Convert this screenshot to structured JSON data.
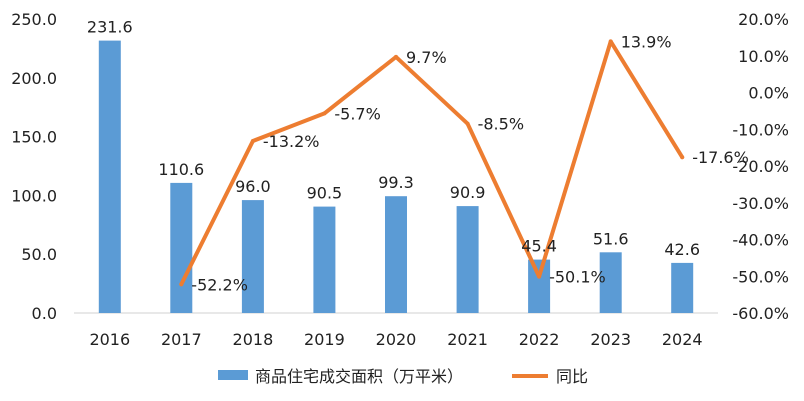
{
  "chart_data": {
    "type": "bar",
    "categories": [
      "2016",
      "2017",
      "2018",
      "2019",
      "2020",
      "2021",
      "2022",
      "2023",
      "2024"
    ],
    "series": [
      {
        "name": "商品住宅成交面积（万平米）",
        "type": "bar",
        "axis": "left",
        "color": "#5B9BD5",
        "values": [
          231.6,
          110.6,
          96.0,
          90.5,
          99.3,
          90.9,
          45.4,
          51.6,
          42.6
        ],
        "labels": [
          "231.6",
          "110.6",
          "96.0",
          "90.5",
          "99.3",
          "90.9",
          "45.4",
          "51.6",
          "42.6"
        ]
      },
      {
        "name": "同比",
        "type": "line",
        "axis": "right",
        "color": "#ED7D31",
        "values": [
          null,
          -52.2,
          -13.2,
          -5.7,
          9.7,
          -8.5,
          -50.1,
          13.9,
          -17.6
        ],
        "labels": [
          "",
          "-52.2%",
          "-13.2%",
          "-5.7%",
          "9.7%",
          "-8.5%",
          "-50.1%",
          "13.9%",
          "-17.6%"
        ]
      }
    ],
    "y_left": {
      "ylim": [
        0,
        250
      ],
      "ticks": [
        "0.0",
        "50.0",
        "100.0",
        "150.0",
        "200.0",
        "250.0"
      ]
    },
    "y_right": {
      "ylim": [
        -60,
        20
      ],
      "ticks": [
        "-60.0%",
        "-50.0%",
        "-40.0%",
        "-30.0%",
        "-20.0%",
        "-10.0%",
        "0.0%",
        "10.0%",
        "20.0%"
      ]
    },
    "grid": false,
    "legend": "bottom"
  }
}
